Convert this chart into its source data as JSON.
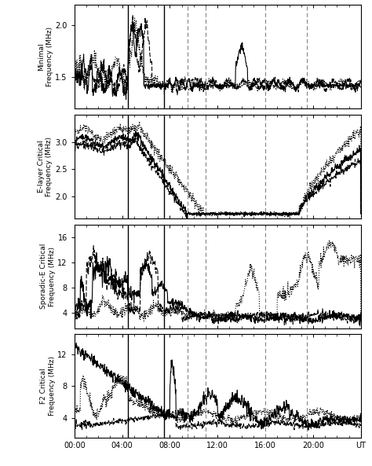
{
  "solid_vlines": [
    4.5,
    7.5
  ],
  "dashed_vlines": [
    9.5,
    11.0,
    16.0,
    19.5
  ],
  "xlabel": "UT",
  "subplots": [
    {
      "ylabel": "Minimal\nFrequency (MHz)",
      "ylim": [
        1.2,
        2.2
      ],
      "yticks": [
        1.5,
        2.0
      ],
      "ytick_labels": [
        "1.5",
        "2.0"
      ]
    },
    {
      "ylabel": "E-layer Critical\nFrequency (MHz)",
      "ylim": [
        1.6,
        3.5
      ],
      "yticks": [
        2.0,
        2.5,
        3.0
      ],
      "ytick_labels": [
        "2.0",
        "2.5",
        "3.0"
      ]
    },
    {
      "ylabel": "Sporadic-E Critical\nFrequency (MHz)",
      "ylim": [
        1.5,
        18.0
      ],
      "yticks": [
        4,
        8,
        12,
        16
      ],
      "ytick_labels": [
        "4",
        "8",
        "12",
        "16"
      ]
    },
    {
      "ylabel": "F2 Critical\nFrequency (MHz)",
      "ylim": [
        1.5,
        14.5
      ],
      "yticks": [
        4,
        8,
        12
      ],
      "ytick_labels": [
        "4",
        "8",
        "12"
      ]
    }
  ],
  "xticks": [
    0,
    4,
    8,
    12,
    16,
    20,
    24
  ],
  "xtick_labels": [
    "00:00",
    "04:00",
    "08:00",
    "12:00",
    "16:00",
    "20:00",
    "UT"
  ]
}
